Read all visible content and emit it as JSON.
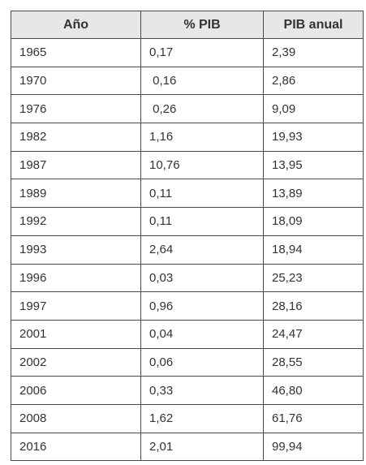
{
  "table": {
    "headers": [
      "Año",
      "% PIB",
      "PIB anual"
    ],
    "rows": [
      [
        "1965",
        "0,17",
        "2,39"
      ],
      [
        "1970",
        " 0,16",
        "2,86"
      ],
      [
        "1976",
        " 0,26",
        "9,09"
      ],
      [
        "1982",
        "1,16",
        "19,93"
      ],
      [
        "1987",
        "10,76",
        "13,95"
      ],
      [
        "1989",
        "0,11",
        "13,89"
      ],
      [
        "1992",
        "0,11",
        "18,09"
      ],
      [
        "1993",
        "2,64",
        "18,94"
      ],
      [
        "1996",
        "0,03",
        "25,23"
      ],
      [
        "1997",
        "0,96",
        "28,16"
      ],
      [
        "2001",
        "0,04",
        "24,47"
      ],
      [
        "2002",
        "0,06",
        "28,55"
      ],
      [
        "2006",
        "0,33",
        "46,80"
      ],
      [
        "2008",
        "1,62",
        "61,76"
      ],
      [
        "2016",
        "2,01",
        "99,94"
      ]
    ]
  }
}
